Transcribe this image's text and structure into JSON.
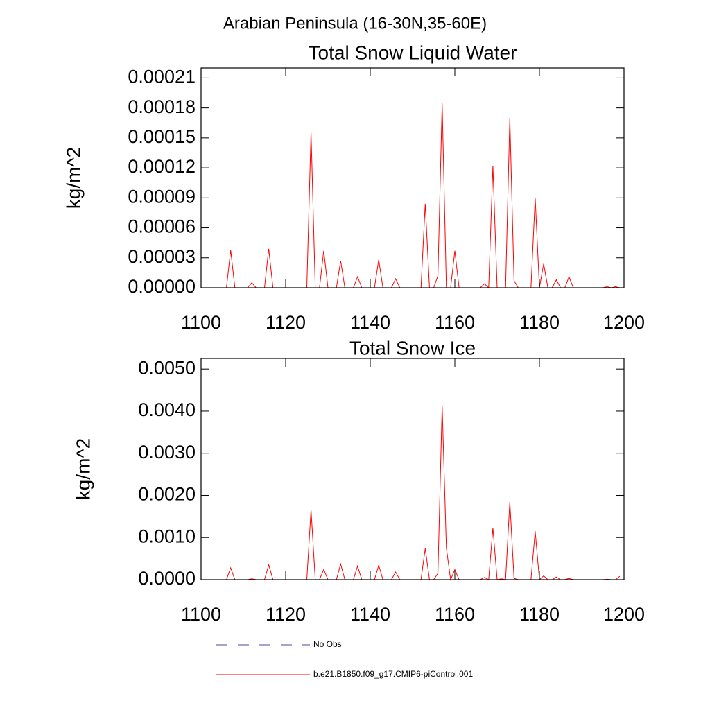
{
  "title": "Arabian Peninsula (16-30N,35-60E)",
  "chart_data": [
    {
      "type": "line",
      "title": "Total Snow Liquid Water",
      "ylabel": "kg/m^2",
      "color": "#ff0000",
      "x": [
        1101,
        1102,
        1103,
        1104,
        1105,
        1106,
        1107,
        1108,
        1109,
        1110,
        1111,
        1112,
        1113,
        1114,
        1115,
        1116,
        1117,
        1118,
        1119,
        1120,
        1121,
        1122,
        1123,
        1124,
        1125,
        1126,
        1127,
        1128,
        1129,
        1130,
        1131,
        1132,
        1133,
        1134,
        1135,
        1136,
        1137,
        1138,
        1139,
        1140,
        1141,
        1142,
        1143,
        1144,
        1145,
        1146,
        1147,
        1148,
        1149,
        1150,
        1151,
        1152,
        1153,
        1154,
        1155,
        1156,
        1157,
        1158,
        1159,
        1160,
        1161,
        1162,
        1163,
        1164,
        1165,
        1166,
        1167,
        1168,
        1169,
        1170,
        1171,
        1172,
        1173,
        1174,
        1175,
        1176,
        1177,
        1178,
        1179,
        1180,
        1181,
        1182,
        1183,
        1184,
        1185,
        1186,
        1187,
        1188,
        1189,
        1190,
        1191,
        1192,
        1193,
        1194,
        1195,
        1196,
        1197,
        1198,
        1199
      ],
      "values": [
        0,
        0,
        0,
        0,
        0,
        0,
        3.75e-05,
        0,
        0,
        0,
        0,
        5e-06,
        0,
        0,
        0,
        3.9e-05,
        0,
        0,
        0,
        0,
        0,
        0,
        0,
        0,
        0,
        0.000156,
        0,
        0,
        3.7e-05,
        0,
        0,
        0,
        2.7e-05,
        0,
        0,
        0,
        1.1e-05,
        0,
        0,
        0,
        0,
        2.8e-05,
        0,
        0,
        0,
        9e-06,
        0,
        0,
        0,
        0,
        0,
        0,
        8.4e-05,
        0,
        0,
        1.2e-05,
        0.000185,
        0,
        0,
        3.7e-05,
        0,
        0,
        0,
        0,
        0,
        0,
        4e-06,
        0,
        0.000122,
        0,
        0,
        0,
        0.00017,
        7e-06,
        0,
        0,
        0,
        0,
        9e-05,
        0,
        2.4e-05,
        0,
        0,
        8e-06,
        0,
        0,
        1.1e-05,
        0,
        0,
        0,
        0,
        0,
        0,
        0,
        0,
        1e-06,
        0,
        1e-06,
        0
      ],
      "xlim": [
        1100,
        1200
      ],
      "xticks": [
        1100,
        1120,
        1140,
        1160,
        1180,
        1200
      ],
      "ylim": [
        0,
        0.00022
      ],
      "yticks": [
        {
          "value": 0,
          "label": "0.00000"
        },
        3e-05,
        6e-05,
        9e-05,
        0.00012,
        0.00015,
        0.00018,
        0.00021
      ]
    },
    {
      "type": "line",
      "title": "Total Snow Ice",
      "ylabel": "kg/m^2",
      "color": "#ff0000",
      "x": [
        1101,
        1102,
        1103,
        1104,
        1105,
        1106,
        1107,
        1108,
        1109,
        1110,
        1111,
        1112,
        1113,
        1114,
        1115,
        1116,
        1117,
        1118,
        1119,
        1120,
        1121,
        1122,
        1123,
        1124,
        1125,
        1126,
        1127,
        1128,
        1129,
        1130,
        1131,
        1132,
        1133,
        1134,
        1135,
        1136,
        1137,
        1138,
        1139,
        1140,
        1141,
        1142,
        1143,
        1144,
        1145,
        1146,
        1147,
        1148,
        1149,
        1150,
        1151,
        1152,
        1153,
        1154,
        1155,
        1156,
        1157,
        1158,
        1159,
        1160,
        1161,
        1162,
        1163,
        1164,
        1165,
        1166,
        1167,
        1168,
        1169,
        1170,
        1171,
        1172,
        1173,
        1174,
        1175,
        1176,
        1177,
        1178,
        1179,
        1180,
        1181,
        1182,
        1183,
        1184,
        1185,
        1186,
        1187,
        1188,
        1189,
        1190,
        1191,
        1192,
        1193,
        1194,
        1195,
        1196,
        1197,
        1198,
        1199
      ],
      "values": [
        0,
        0,
        0,
        0,
        0,
        0,
        0.00028,
        0,
        0,
        0,
        0,
        2e-05,
        0,
        0,
        0,
        0.00035,
        0,
        0,
        0,
        0,
        0,
        0,
        0,
        0,
        0,
        0.00166,
        0,
        0,
        0.00024,
        0,
        0,
        0,
        0.00037,
        0,
        0,
        0,
        0.00032,
        0,
        0,
        0,
        0,
        0.00034,
        0,
        0,
        0,
        0.00018,
        0,
        0,
        0,
        0,
        0,
        0,
        0.00074,
        0,
        0,
        0.00015,
        0.00414,
        0.00075,
        0,
        0.00024,
        0,
        0,
        0,
        0,
        0,
        0,
        5e-05,
        0,
        0.00123,
        0,
        2e-05,
        0,
        0.00185,
        3e-05,
        0,
        0,
        0,
        0,
        0.00115,
        0,
        9e-05,
        0,
        0,
        6e-05,
        0,
        0,
        3e-05,
        0,
        0,
        0,
        0,
        0,
        0,
        0,
        0,
        1e-05,
        0,
        0,
        8e-05
      ],
      "xlim": [
        1100,
        1200
      ],
      "xticks": [
        1100,
        1120,
        1140,
        1160,
        1180,
        1200
      ],
      "ylim": [
        0,
        0.00525
      ],
      "yticks": [
        {
          "value": 0,
          "label": "0.0000"
        },
        {
          "value": 0.001,
          "label": "0.0010"
        },
        {
          "value": 0.002,
          "label": "0.0020"
        },
        {
          "value": 0.003,
          "label": "0.0030"
        },
        {
          "value": 0.004,
          "label": "0.0040"
        },
        {
          "value": 0.005,
          "label": "0.0050"
        }
      ]
    }
  ],
  "legend": [
    {
      "label": "No Obs",
      "color": "#4a4a9c",
      "dash": true
    },
    {
      "label": "b.e21.B1850.f09_g17.CMIP6-piControl.001",
      "color": "#ff0000",
      "dash": false
    }
  ]
}
